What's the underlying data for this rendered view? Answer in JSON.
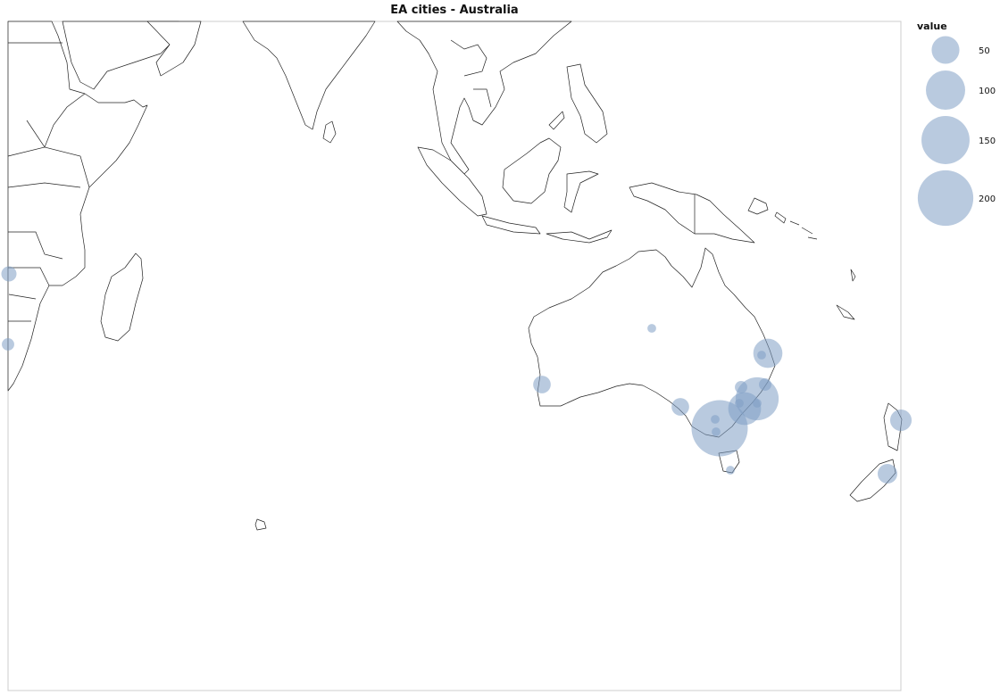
{
  "title": "EA cities - Australia",
  "legend": {
    "title": "value",
    "entries": [
      {
        "label": "50",
        "value": 50
      },
      {
        "label": "100",
        "value": 100
      },
      {
        "label": "150",
        "value": 150
      },
      {
        "label": "200",
        "value": 200
      }
    ]
  },
  "colors": {
    "bubble": "#7f9fc4",
    "land_stroke": "#222222",
    "frame": "#cccccc"
  },
  "cities": [
    {
      "value": 205
    },
    {
      "value": 120
    },
    {
      "value": 70
    },
    {
      "value": 55
    },
    {
      "value": 30
    },
    {
      "value": 25
    },
    {
      "value": 20
    },
    {
      "value": 20
    },
    {
      "value": 15
    },
    {
      "value": 10
    },
    {
      "value": 10
    },
    {
      "value": 10
    },
    {
      "value": 5
    },
    {
      "value": 5
    },
    {
      "value": 5
    },
    {
      "value": 5
    },
    {
      "value": 5
    },
    {
      "value": 5
    },
    {
      "value": 5
    }
  ]
}
